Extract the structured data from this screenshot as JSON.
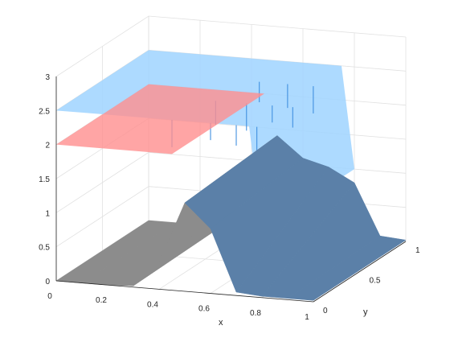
{
  "chart_data": {
    "type": "surface",
    "title": "",
    "xlabel": "x",
    "ylabel": "y",
    "zlabel": "",
    "xlim": [
      0,
      1
    ],
    "ylim": [
      0,
      1
    ],
    "zlim": [
      0,
      3
    ],
    "grid": true,
    "view": "3d-perspective",
    "x_ticks": [
      "0",
      "0.2",
      "0.4",
      "0.6",
      "0.8",
      "1"
    ],
    "y_ticks": [
      "0",
      "0.5",
      "1"
    ],
    "z_ticks": [
      "0",
      "0.5",
      "1",
      "1.5",
      "2",
      "2.5",
      "3"
    ],
    "colors": {
      "lower_surface_left": "#8c8c8c",
      "lower_surface_right": "#5b80a8",
      "middle_surface": "#ff8f8f",
      "upper_surface": "#9fd3ff",
      "step_streaks": "#3f8fe0",
      "grid": "#e1e1e1",
      "axis": "#262626"
    },
    "series": [
      {
        "surface": "lower",
        "description_of_shape": "z is ~0 for x < 0.3, rises to ~1.4 near x = 0.5, dips to ~0.9 near x = 0.75 (back) and ~0 in front, falls to 0 by x ~ 0.9",
        "x": [
          0,
          0.1,
          0.2,
          0.3,
          0.4,
          0.5,
          0.6,
          0.7,
          0.8,
          0.9,
          1.0
        ],
        "z_front_y0": [
          0,
          0,
          0,
          0.02,
          0.4,
          1.3,
          0.95,
          0.05,
          0.02,
          0.02,
          0.02
        ],
        "z_back_y1": [
          0,
          0,
          0,
          0.05,
          0.6,
          1.4,
          1.1,
          1.0,
          0.8,
          0.05,
          0.02
        ]
      },
      {
        "surface": "middle",
        "z": 2,
        "description_of_shape": "constant plateau at z = 2 for x < 0.45, then steps up to z = 2.5 with jagged front",
        "x": [
          0,
          0.1,
          0.2,
          0.3,
          0.4,
          0.45
        ],
        "z_values": [
          2,
          2,
          2,
          2,
          2,
          2
        ]
      },
      {
        "surface": "upper",
        "description_of_shape": "z = 2.5 for x < ~0.75, steps down to lower surface near x ~ 0.8 with vertical streaks; steps at x ~ 0.5 onto middle level",
        "x": [
          0,
          0.1,
          0.2,
          0.3,
          0.4,
          0.5,
          0.6,
          0.7,
          0.75,
          0.8
        ],
        "z_values": [
          2.5,
          2.5,
          2.5,
          2.5,
          2.5,
          2.5,
          2.5,
          2.5,
          2.5,
          1.0
        ]
      }
    ]
  }
}
